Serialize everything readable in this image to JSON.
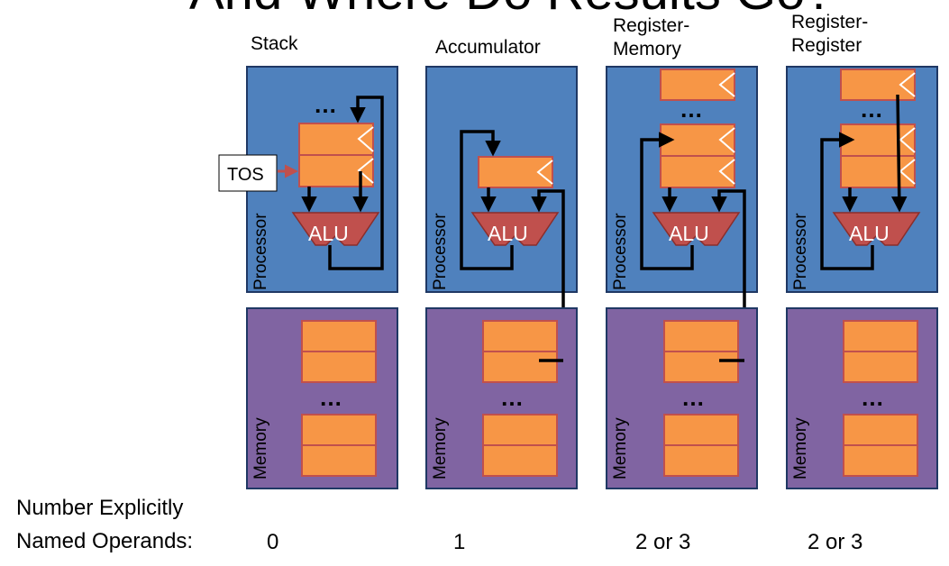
{
  "title": "And Where Do Results Go?",
  "tos_label": "TOS",
  "alu_label": "ALU",
  "processor_label": "Processor",
  "memory_label": "Memory",
  "ellipsis": "…",
  "operands_label": {
    "line1": "Number Explicitly",
    "line2": "Named Operands:"
  },
  "architectures": [
    {
      "name": "Stack",
      "operands": "0"
    },
    {
      "name": "Accumulator",
      "operands": "1"
    },
    {
      "name": "Register-\nMemory",
      "name_line1": "Register-",
      "name_line2": "Memory",
      "operands": "2 or 3"
    },
    {
      "name": "Register-\nRegister",
      "name_line1": "Register-",
      "name_line2": "Register",
      "operands": "2 or 3"
    }
  ],
  "colors": {
    "processor_fill": "#4f81bd",
    "memory_fill": "#8064a2",
    "register_fill": "#f79646",
    "alu_fill": "#c0504d",
    "border": "#1f3864"
  }
}
